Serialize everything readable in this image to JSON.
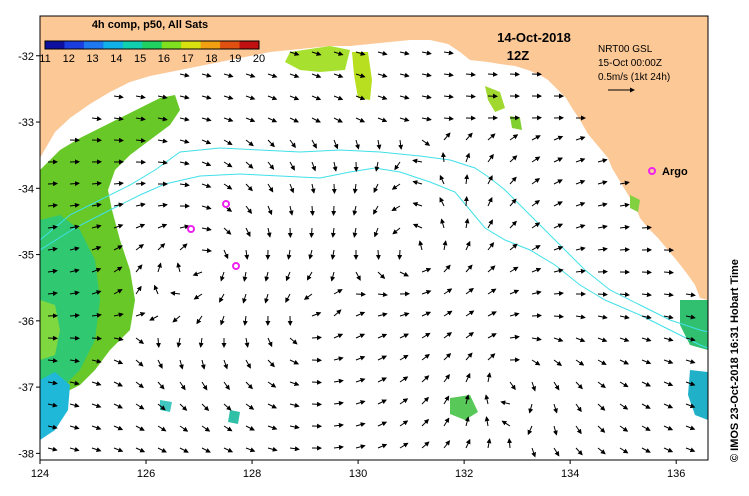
{
  "legend": {
    "title": "4h comp, p50, All Sats",
    "colorbar_labels": [
      "11",
      "12",
      "13",
      "14",
      "15",
      "16",
      "17",
      "18",
      "19",
      "20"
    ],
    "colors": [
      "#1010a0",
      "#1a3ee0",
      "#1e78f0",
      "#10b0e8",
      "#10d0b0",
      "#20d060",
      "#80e020",
      "#d8e010",
      "#f0a010",
      "#e05010",
      "#c01010"
    ]
  },
  "date": {
    "line1": "14-Oct-2018",
    "line2": "12Z"
  },
  "info": {
    "line1": "NRT00 GSL",
    "line2": "15-Oct 00:00Z",
    "line3": "0.5m/s (1kt 24h)"
  },
  "argo": {
    "label": "Argo",
    "color": "#ee22ee"
  },
  "credit": "© IMOS 23-Oct-2018 16:31 Hobart Time",
  "axes": {
    "x_ticks": [
      "124",
      "126",
      "128",
      "130",
      "132",
      "134",
      "136"
    ],
    "y_ticks": [
      "-32",
      "-33",
      "-34",
      "-35",
      "-36",
      "-37",
      "-38"
    ],
    "lon_range": [
      124,
      136.6
    ],
    "lat_range": [
      -38.1,
      -31.4
    ]
  },
  "colors": {
    "land": "#fcc896",
    "contour": "#40e0e8",
    "ocean": "#ffffff"
  }
}
